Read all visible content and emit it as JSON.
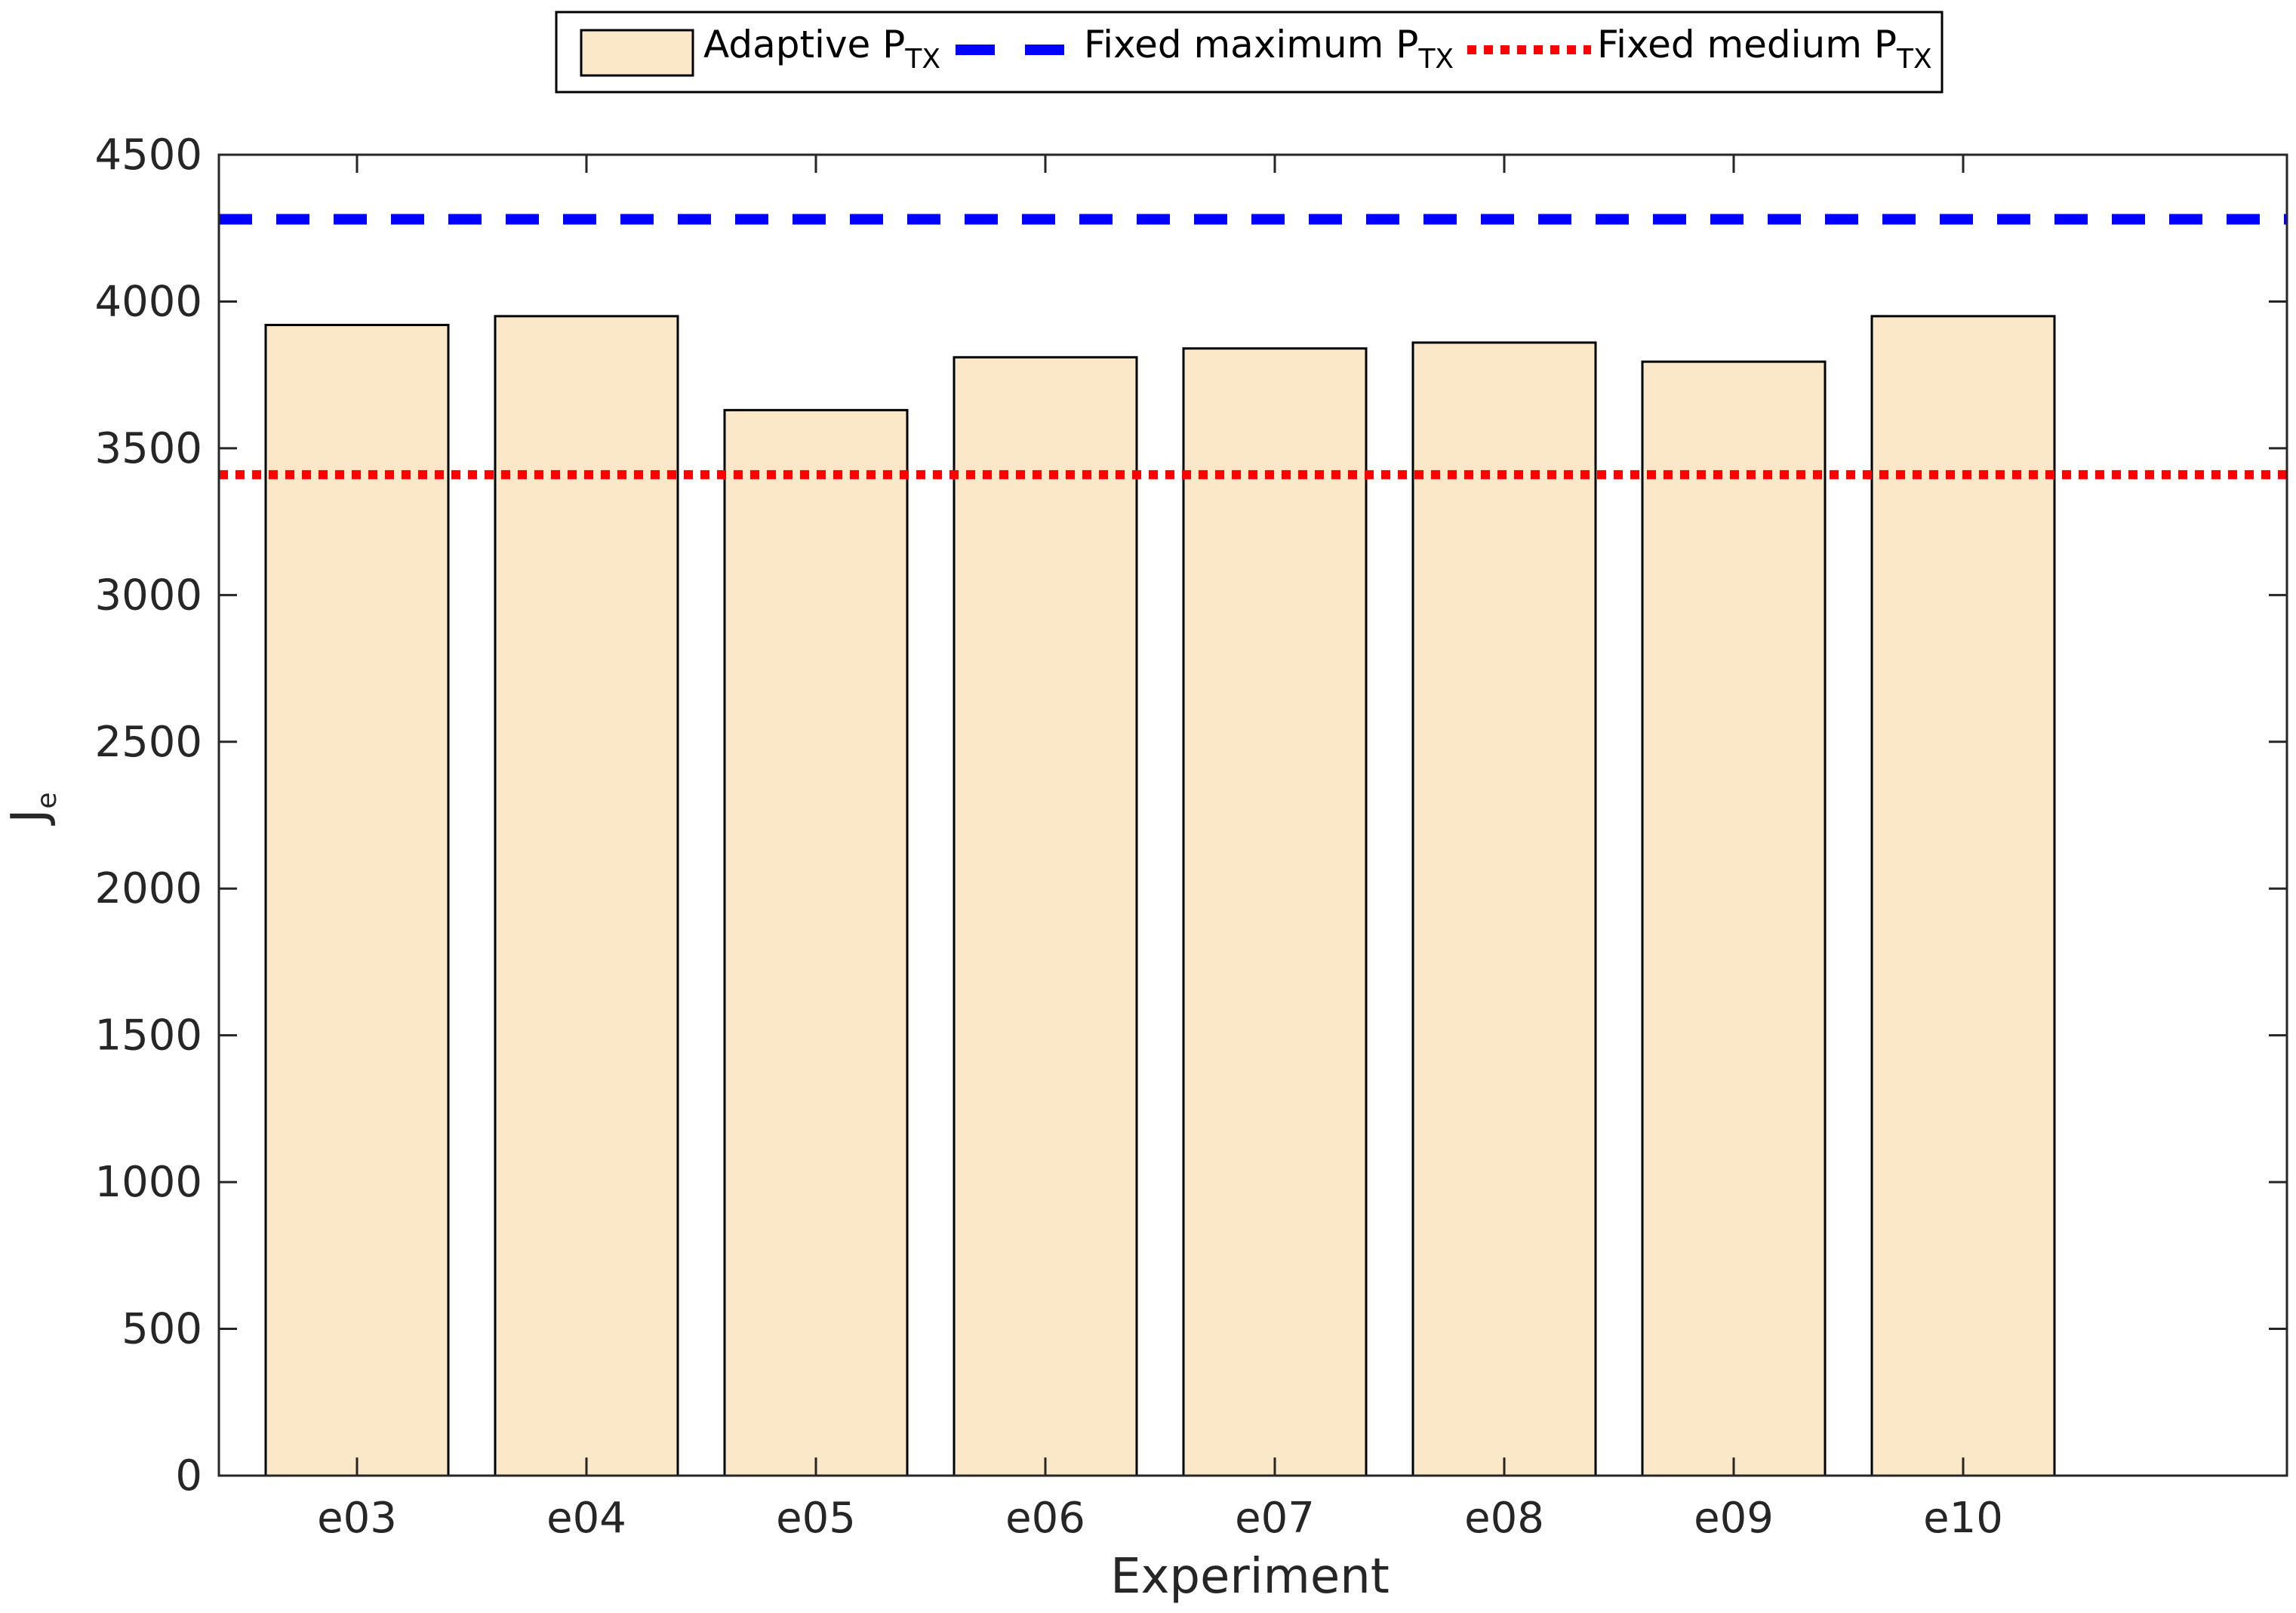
{
  "chart_data": {
    "type": "bar",
    "categories": [
      "e03",
      "e04",
      "e05",
      "e06",
      "e07",
      "e08",
      "e09",
      "e10"
    ],
    "series": [
      {
        "name": "Adaptive P",
        "name_sub": "TX",
        "values": [
          3920,
          3950,
          3630,
          3810,
          3840,
          3860,
          3795,
          3950
        ]
      }
    ],
    "reference_lines": [
      {
        "name": "Fixed maximum P",
        "name_sub": "TX",
        "value": 4280,
        "style": "dashed"
      },
      {
        "name": "Fixed medium P",
        "name_sub": "TX",
        "value": 3410,
        "style": "dotted"
      }
    ],
    "xlabel": "Experiment",
    "ylabel": "J",
    "ylabel_sub": "e",
    "ylim": [
      0,
      4500
    ],
    "yticks": [
      0,
      500,
      1000,
      1500,
      2000,
      2500,
      3000,
      3500,
      4000,
      4500
    ],
    "grid": false,
    "legend_position": "top",
    "colors": {
      "bar_fill": "#fbe8c9",
      "bar_stroke": "#000000",
      "max_line": "#0000ff",
      "medium_line": "#ff0000",
      "axis": "#262626"
    }
  }
}
